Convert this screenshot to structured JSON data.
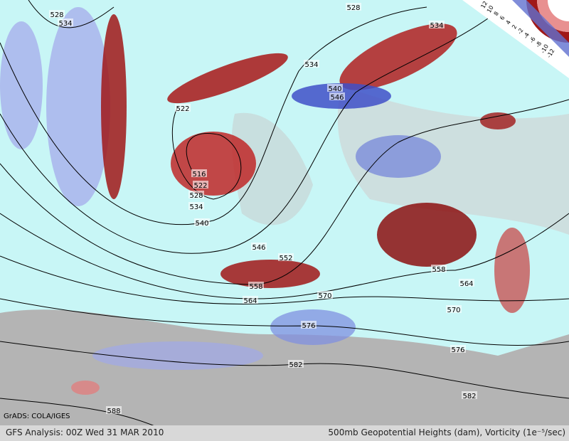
{
  "map": {
    "credit": "GrADS: COLA/IGES",
    "footer_left": "GFS Analysis: 00Z Wed 31 MAR 2010",
    "footer_right": "500mb Geopotential Heights (dam), Vorticity (1e⁻⁵/sec)",
    "legend_labels": [
      "12",
      "10",
      "8",
      "6",
      "4",
      "2",
      "-2",
      "-4",
      "-6",
      "-8",
      "-10",
      "-12"
    ],
    "contour_labels": [
      528,
      534,
      528,
      534,
      534,
      540,
      546,
      522,
      516,
      522,
      528,
      534,
      540,
      546,
      552,
      558,
      564,
      570,
      558,
      564,
      570,
      576,
      576,
      582,
      582,
      588
    ]
  }
}
